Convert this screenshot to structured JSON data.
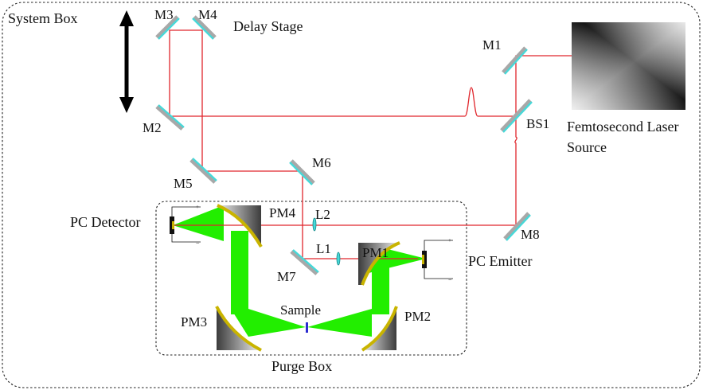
{
  "title": "System Box",
  "boxes": {
    "system_box": "System Box",
    "purge_box": "Purge Box"
  },
  "components": {
    "delay_stage": "Delay Stage",
    "laser_source_line1": "Femtosecond Laser",
    "laser_source_line2": "Source",
    "pc_detector": "PC Detector",
    "pc_emitter": "PC Emitter",
    "sample": "Sample"
  },
  "mirrors": [
    "M1",
    "M2",
    "M3",
    "M4",
    "M5",
    "M6",
    "M7",
    "M8"
  ],
  "beam_splitter": "BS1",
  "lenses": [
    "L1",
    "L2"
  ],
  "parabolic_mirrors": [
    "PM1",
    "PM2",
    "PM3",
    "PM4"
  ],
  "colors": {
    "laser_beam": "#e0262c",
    "thz_beam": "#22ee00",
    "mirror_face": "#47d8d8",
    "mirror_back": "#a8a8a8",
    "paraboloid_coating": "#c9b400"
  }
}
